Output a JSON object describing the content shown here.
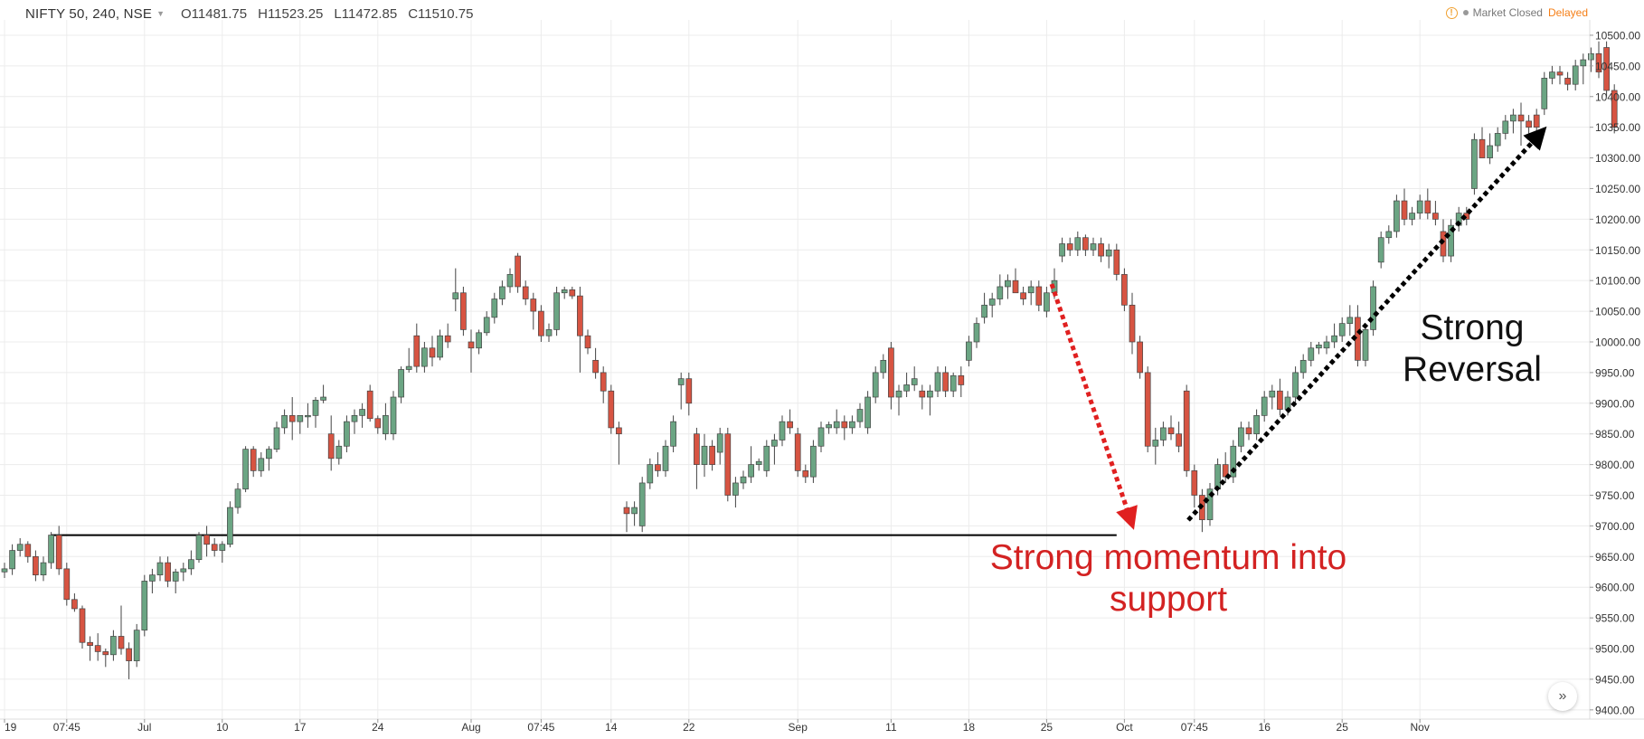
{
  "header": {
    "symbol": "NIFTY 50, 240, NSE",
    "open": "O11481.75",
    "high": "H11523.25",
    "low": "L11472.85",
    "close": "C11510.75"
  },
  "status": {
    "warning_icon": "!",
    "market": "Market Closed",
    "delayed": "Delayed"
  },
  "annotations": {
    "momentum": "Strong momentum into support",
    "reversal": "Strong Reversal"
  },
  "goto_icon": "»",
  "colors": {
    "up": "#6ba583",
    "down": "#d75442",
    "grid": "#ececec",
    "support_line": "#000000",
    "red_arrow": "#e02020",
    "black_arrow": "#000000"
  },
  "chart_data": {
    "type": "candlestick",
    "y_range": [
      9385,
      10525
    ],
    "y_ticks": [
      "10500.00",
      "10450.00",
      "10400.00",
      "10350.00",
      "10300.00",
      "10250.00",
      "10200.00",
      "10150.00",
      "10100.00",
      "10050.00",
      "10000.00",
      "9950.00",
      "9900.00",
      "9850.00",
      "9800.00",
      "9750.00",
      "9700.00",
      "9650.00",
      "9600.00",
      "9550.00",
      "9500.00",
      "9450.00",
      "9400.00"
    ],
    "x_ticks": [
      {
        "label": "19",
        "bar": 0
      },
      {
        "label": "07:45",
        "bar": 8
      },
      {
        "label": "Jul",
        "bar": 18
      },
      {
        "label": "10",
        "bar": 28
      },
      {
        "label": "17",
        "bar": 38
      },
      {
        "label": "24",
        "bar": 48
      },
      {
        "label": "Aug",
        "bar": 60
      },
      {
        "label": "07:45",
        "bar": 69
      },
      {
        "label": "14",
        "bar": 78
      },
      {
        "label": "22",
        "bar": 88
      },
      {
        "label": "Sep",
        "bar": 102
      },
      {
        "label": "11",
        "bar": 114
      },
      {
        "label": "18",
        "bar": 124
      },
      {
        "label": "25",
        "bar": 134
      },
      {
        "label": "Oct",
        "bar": 144
      },
      {
        "label": "07:45",
        "bar": 153
      },
      {
        "label": "16",
        "bar": 162
      },
      {
        "label": "25",
        "bar": 172
      },
      {
        "label": "Nov",
        "bar": 182
      }
    ],
    "support_level": 9685,
    "support_span": [
      6,
      143
    ],
    "candles": [
      [
        9625,
        9640,
        9615,
        9630
      ],
      [
        9630,
        9670,
        9620,
        9660
      ],
      [
        9660,
        9680,
        9650,
        9670
      ],
      [
        9670,
        9675,
        9640,
        9650
      ],
      [
        9650,
        9660,
        9610,
        9620
      ],
      [
        9620,
        9650,
        9610,
        9640
      ],
      [
        9640,
        9690,
        9630,
        9685
      ],
      [
        9685,
        9700,
        9620,
        9630
      ],
      [
        9630,
        9640,
        9570,
        9580
      ],
      [
        9580,
        9590,
        9560,
        9565
      ],
      [
        9565,
        9570,
        9500,
        9510
      ],
      [
        9510,
        9520,
        9480,
        9505
      ],
      [
        9505,
        9525,
        9480,
        9495
      ],
      [
        9495,
        9500,
        9470,
        9490
      ],
      [
        9490,
        9530,
        9480,
        9520
      ],
      [
        9520,
        9570,
        9490,
        9500
      ],
      [
        9500,
        9510,
        9450,
        9480
      ],
      [
        9480,
        9540,
        9470,
        9530
      ],
      [
        9530,
        9620,
        9520,
        9610
      ],
      [
        9610,
        9630,
        9590,
        9620
      ],
      [
        9620,
        9650,
        9610,
        9640
      ],
      [
        9640,
        9650,
        9600,
        9610
      ],
      [
        9610,
        9630,
        9590,
        9625
      ],
      [
        9625,
        9640,
        9610,
        9630
      ],
      [
        9630,
        9660,
        9620,
        9645
      ],
      [
        9645,
        9690,
        9640,
        9685
      ],
      [
        9685,
        9700,
        9650,
        9670
      ],
      [
        9670,
        9680,
        9650,
        9660
      ],
      [
        9660,
        9675,
        9640,
        9670
      ],
      [
        9670,
        9740,
        9665,
        9730
      ],
      [
        9730,
        9770,
        9720,
        9760
      ],
      [
        9760,
        9830,
        9755,
        9825
      ],
      [
        9825,
        9830,
        9780,
        9790
      ],
      [
        9790,
        9820,
        9780,
        9810
      ],
      [
        9810,
        9830,
        9790,
        9825
      ],
      [
        9825,
        9870,
        9820,
        9860
      ],
      [
        9860,
        9890,
        9850,
        9880
      ],
      [
        9880,
        9910,
        9840,
        9870
      ],
      [
        9870,
        9880,
        9850,
        9880
      ],
      [
        9880,
        9900,
        9860,
        9880
      ],
      [
        9880,
        9910,
        9860,
        9905
      ],
      [
        9905,
        9930,
        9900,
        9910
      ],
      [
        9850,
        9880,
        9790,
        9810
      ],
      [
        9810,
        9840,
        9800,
        9830
      ],
      [
        9830,
        9880,
        9820,
        9870
      ],
      [
        9870,
        9890,
        9850,
        9880
      ],
      [
        9880,
        9900,
        9860,
        9890
      ],
      [
        9920,
        9930,
        9870,
        9875
      ],
      [
        9875,
        9880,
        9850,
        9860
      ],
      [
        9850,
        9900,
        9840,
        9880
      ],
      [
        9850,
        9920,
        9840,
        9910
      ],
      [
        9910,
        9960,
        9900,
        9955
      ],
      [
        9955,
        9990,
        9950,
        9960
      ],
      [
        10010,
        10030,
        9950,
        9960
      ],
      [
        9960,
        10000,
        9950,
        9990
      ],
      [
        9990,
        10010,
        9960,
        9975
      ],
      [
        9975,
        10020,
        9970,
        10010
      ],
      [
        10010,
        10030,
        9990,
        10000
      ],
      [
        10070,
        10120,
        10050,
        10080
      ],
      [
        10080,
        10090,
        10010,
        10020
      ],
      [
        10000,
        10020,
        9950,
        9990
      ],
      [
        9990,
        10020,
        9980,
        10015
      ],
      [
        10015,
        10050,
        10010,
        10040
      ],
      [
        10040,
        10080,
        10030,
        10070
      ],
      [
        10070,
        10100,
        10060,
        10090
      ],
      [
        10090,
        10120,
        10080,
        10110
      ],
      [
        10140,
        10145,
        10080,
        10090
      ],
      [
        10090,
        10100,
        10060,
        10070
      ],
      [
        10070,
        10080,
        10020,
        10050
      ],
      [
        10050,
        10060,
        10000,
        10010
      ],
      [
        10010,
        10030,
        10000,
        10020
      ],
      [
        10020,
        10090,
        10010,
        10080
      ],
      [
        10080,
        10090,
        10070,
        10085
      ],
      [
        10085,
        10090,
        10070,
        10075
      ],
      [
        10075,
        10090,
        9950,
        10010
      ],
      [
        10010,
        10020,
        9980,
        9990
      ],
      [
        9970,
        9990,
        9940,
        9950
      ],
      [
        9950,
        9960,
        9900,
        9920
      ],
      [
        9920,
        9930,
        9850,
        9860
      ],
      [
        9860,
        9870,
        9800,
        9850
      ],
      [
        9730,
        9740,
        9690,
        9720
      ],
      [
        9720,
        9740,
        9700,
        9730
      ],
      [
        9700,
        9780,
        9690,
        9770
      ],
      [
        9770,
        9810,
        9760,
        9800
      ],
      [
        9800,
        9820,
        9780,
        9790
      ],
      [
        9790,
        9840,
        9780,
        9830
      ],
      [
        9830,
        9880,
        9820,
        9870
      ],
      [
        9930,
        9950,
        9890,
        9940
      ],
      [
        9940,
        9950,
        9880,
        9900
      ],
      [
        9850,
        9860,
        9760,
        9800
      ],
      [
        9800,
        9850,
        9780,
        9830
      ],
      [
        9830,
        9840,
        9790,
        9800
      ],
      [
        9820,
        9860,
        9800,
        9850
      ],
      [
        9850,
        9860,
        9740,
        9750
      ],
      [
        9750,
        9780,
        9730,
        9770
      ],
      [
        9770,
        9790,
        9760,
        9780
      ],
      [
        9780,
        9830,
        9770,
        9800
      ],
      [
        9800,
        9810,
        9790,
        9805
      ],
      [
        9790,
        9840,
        9780,
        9830
      ],
      [
        9830,
        9850,
        9800,
        9840
      ],
      [
        9840,
        9880,
        9830,
        9870
      ],
      [
        9870,
        9890,
        9850,
        9860
      ],
      [
        9850,
        9860,
        9780,
        9790
      ],
      [
        9790,
        9800,
        9770,
        9780
      ],
      [
        9780,
        9840,
        9770,
        9830
      ],
      [
        9830,
        9870,
        9820,
        9860
      ],
      [
        9860,
        9870,
        9850,
        9865
      ],
      [
        9860,
        9890,
        9850,
        9870
      ],
      [
        9870,
        9880,
        9840,
        9860
      ],
      [
        9860,
        9880,
        9850,
        9870
      ],
      [
        9870,
        9900,
        9860,
        9890
      ],
      [
        9860,
        9920,
        9850,
        9910
      ],
      [
        9910,
        9960,
        9900,
        9950
      ],
      [
        9950,
        9980,
        9940,
        9970
      ],
      [
        9990,
        10000,
        9890,
        9910
      ],
      [
        9910,
        9930,
        9880,
        9920
      ],
      [
        9920,
        9950,
        9910,
        9930
      ],
      [
        9930,
        9960,
        9920,
        9940
      ],
      [
        9920,
        9930,
        9890,
        9910
      ],
      [
        9910,
        9930,
        9880,
        9920
      ],
      [
        9920,
        9960,
        9910,
        9950
      ],
      [
        9950,
        9960,
        9910,
        9920
      ],
      [
        9920,
        9950,
        9910,
        9945
      ],
      [
        9945,
        9960,
        9910,
        9930
      ],
      [
        9970,
        10010,
        9960,
        10000
      ],
      [
        10000,
        10040,
        9990,
        10030
      ],
      [
        10040,
        10080,
        10030,
        10060
      ],
      [
        10060,
        10080,
        10040,
        10070
      ],
      [
        10070,
        10110,
        10060,
        10090
      ],
      [
        10090,
        10110,
        10070,
        10100
      ],
      [
        10100,
        10120,
        10080,
        10080
      ],
      [
        10080,
        10090,
        10060,
        10070
      ],
      [
        10080,
        10100,
        10060,
        10090
      ],
      [
        10090,
        10100,
        10050,
        10060
      ],
      [
        10050,
        10090,
        10040,
        10080
      ],
      [
        10080,
        10120,
        10070,
        10100
      ],
      [
        10140,
        10170,
        10130,
        10160
      ],
      [
        10160,
        10170,
        10140,
        10150
      ],
      [
        10150,
        10180,
        10140,
        10170
      ],
      [
        10170,
        10175,
        10140,
        10150
      ],
      [
        10150,
        10170,
        10140,
        10160
      ],
      [
        10160,
        10170,
        10130,
        10140
      ],
      [
        10140,
        10160,
        10120,
        10150
      ],
      [
        10150,
        10160,
        10100,
        10110
      ],
      [
        10110,
        10120,
        10050,
        10060
      ],
      [
        10060,
        10080,
        9980,
        10000
      ],
      [
        10000,
        10010,
        9940,
        9950
      ],
      [
        9950,
        9960,
        9820,
        9830
      ],
      [
        9830,
        9860,
        9800,
        9840
      ],
      [
        9840,
        9870,
        9830,
        9860
      ],
      [
        9860,
        9880,
        9840,
        9850
      ],
      [
        9850,
        9870,
        9820,
        9830
      ],
      [
        9920,
        9930,
        9780,
        9790
      ],
      [
        9790,
        9800,
        9730,
        9750
      ],
      [
        9750,
        9760,
        9690,
        9710
      ],
      [
        9710,
        9770,
        9700,
        9760
      ],
      [
        9760,
        9810,
        9750,
        9800
      ],
      [
        9800,
        9820,
        9770,
        9780
      ],
      [
        9780,
        9840,
        9770,
        9830
      ],
      [
        9830,
        9870,
        9820,
        9860
      ],
      [
        9860,
        9870,
        9840,
        9850
      ],
      [
        9850,
        9890,
        9840,
        9880
      ],
      [
        9880,
        9920,
        9870,
        9910
      ],
      [
        9910,
        9930,
        9890,
        9920
      ],
      [
        9920,
        9940,
        9880,
        9890
      ],
      [
        9890,
        9920,
        9880,
        9910
      ],
      [
        9910,
        9960,
        9900,
        9950
      ],
      [
        9950,
        9980,
        9940,
        9970
      ],
      [
        9970,
        10000,
        9960,
        9990
      ],
      [
        9990,
        10000,
        9980,
        9995
      ],
      [
        9990,
        10010,
        9980,
        10000
      ],
      [
        10000,
        10030,
        9990,
        10010
      ],
      [
        10010,
        10040,
        10000,
        10030
      ],
      [
        10030,
        10060,
        10010,
        10040
      ],
      [
        10040,
        10060,
        9960,
        9970
      ],
      [
        9970,
        10030,
        9960,
        10020
      ],
      [
        10020,
        10100,
        10010,
        10090
      ],
      [
        10130,
        10180,
        10120,
        10170
      ],
      [
        10170,
        10190,
        10160,
        10180
      ],
      [
        10180,
        10240,
        10170,
        10230
      ],
      [
        10230,
        10250,
        10190,
        10200
      ],
      [
        10200,
        10220,
        10190,
        10210
      ],
      [
        10210,
        10240,
        10200,
        10230
      ],
      [
        10230,
        10250,
        10200,
        10210
      ],
      [
        10210,
        10230,
        10190,
        10200
      ],
      [
        10180,
        10200,
        10130,
        10140
      ],
      [
        10140,
        10200,
        10130,
        10190
      ],
      [
        10190,
        10220,
        10180,
        10210
      ],
      [
        10210,
        10220,
        10190,
        10200
      ],
      [
        10250,
        10340,
        10240,
        10330
      ],
      [
        10330,
        10350,
        10300,
        10300
      ],
      [
        10300,
        10340,
        10290,
        10320
      ],
      [
        10320,
        10350,
        10310,
        10340
      ],
      [
        10340,
        10370,
        10330,
        10360
      ],
      [
        10360,
        10380,
        10340,
        10370
      ],
      [
        10370,
        10390,
        10320,
        10360
      ],
      [
        10360,
        10370,
        10330,
        10350
      ],
      [
        10370,
        10380,
        10340,
        10350
      ],
      [
        10380,
        10440,
        10370,
        10430
      ],
      [
        10430,
        10450,
        10420,
        10440
      ],
      [
        10440,
        10450,
        10420,
        10435
      ],
      [
        10430,
        10440,
        10410,
        10420
      ],
      [
        10420,
        10460,
        10410,
        10450
      ],
      [
        10450,
        10470,
        10420,
        10460
      ],
      [
        10460,
        10480,
        10440,
        10470
      ],
      [
        10470,
        10490,
        10430,
        10440
      ],
      [
        10480,
        10490,
        10400,
        10410
      ],
      [
        10410,
        10420,
        10340,
        10350
      ]
    ]
  }
}
